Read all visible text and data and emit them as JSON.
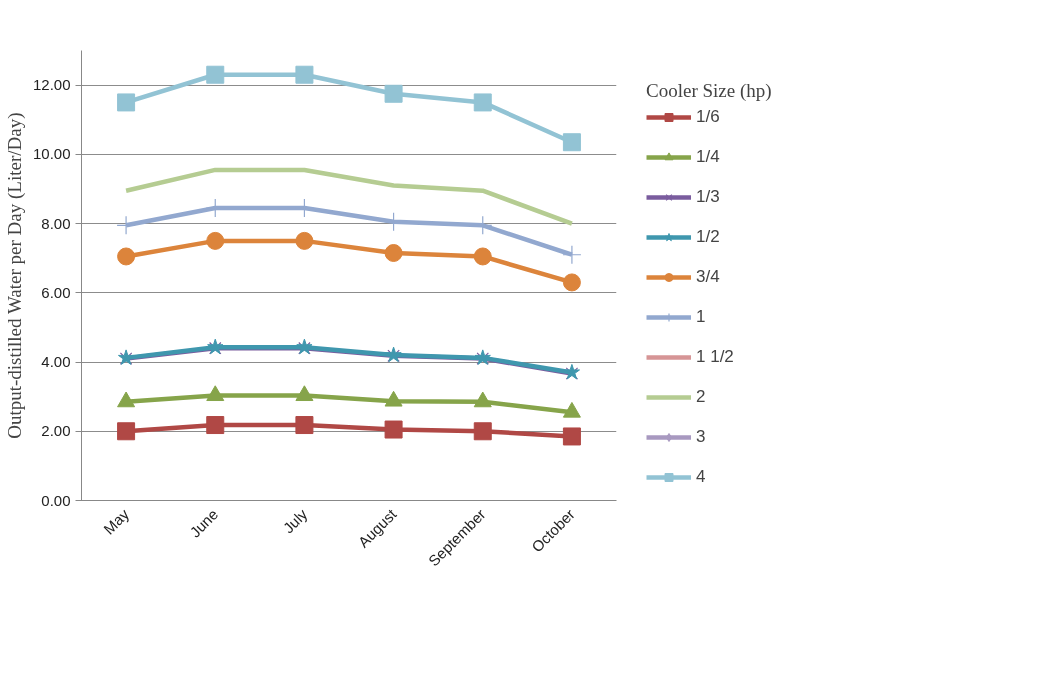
{
  "chart_data": {
    "type": "line",
    "ylabel": "Output-distilled Water per Day (Liter/Day)",
    "legend_title": "Cooler Size (hp)",
    "legend": "right",
    "grid": "y",
    "categories": [
      "May",
      "June",
      "July",
      "August",
      "September",
      "October"
    ],
    "ylim": [
      0,
      13
    ],
    "yticks": [
      {
        "value": 0,
        "label": "0.00"
      },
      {
        "value": 2,
        "label": "2.00"
      },
      {
        "value": 4,
        "label": "4.00"
      },
      {
        "value": 6,
        "label": "6.00"
      },
      {
        "value": 8,
        "label": "8.00"
      },
      {
        "value": 10,
        "label": "10.00"
      },
      {
        "value": 12,
        "label": "12.00"
      }
    ],
    "series": [
      {
        "name": "1/6",
        "color": "#b04845",
        "marker": "square",
        "values": [
          2.0,
          2.18,
          2.18,
          2.05,
          2.0,
          1.85
        ]
      },
      {
        "name": "1/4",
        "color": "#86a44a",
        "marker": "triangle",
        "values": [
          2.85,
          3.03,
          3.03,
          2.87,
          2.85,
          2.55
        ]
      },
      {
        "name": "1/3",
        "color": "#7a5c9e",
        "marker": "x",
        "values": [
          4.1,
          4.4,
          4.4,
          4.18,
          4.1,
          3.67
        ]
      },
      {
        "name": "1/2",
        "color": "#3f97ae",
        "marker": "star",
        "values": [
          4.12,
          4.43,
          4.43,
          4.2,
          4.12,
          3.7
        ]
      },
      {
        "name": "3/4",
        "color": "#dc843b",
        "marker": "circle",
        "values": [
          7.05,
          7.5,
          7.5,
          7.15,
          7.05,
          6.3
        ]
      },
      {
        "name": "1",
        "color": "#92a8cf",
        "marker": "cross",
        "values": [
          7.95,
          8.45,
          8.45,
          8.05,
          7.95,
          7.1
        ]
      },
      {
        "name": "1 1/2",
        "color": "#d69596",
        "marker": "none",
        "values": [
          null,
          null,
          null,
          null,
          null,
          null
        ]
      },
      {
        "name": "2",
        "color": "#b5cc92",
        "marker": "none",
        "values": [
          8.95,
          9.55,
          9.55,
          9.1,
          8.95,
          8.0
        ]
      },
      {
        "name": "3",
        "color": "#a899c0",
        "marker": "diamond",
        "values": [
          null,
          null,
          null,
          null,
          null,
          null
        ]
      },
      {
        "name": "4",
        "color": "#92c3d4",
        "marker": "square",
        "values": [
          11.5,
          12.3,
          12.3,
          11.75,
          11.5,
          10.35
        ]
      }
    ]
  }
}
